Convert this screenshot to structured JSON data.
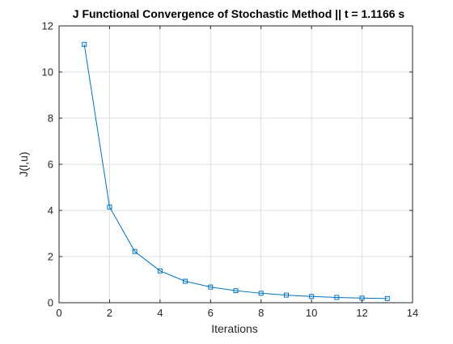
{
  "chart_data": {
    "type": "line",
    "title": "J Functional Convergence of Stochastic Method  ||  t = 1.1166 s",
    "xlabel": "Iterations",
    "ylabel": "J(l,u)",
    "xlim": [
      0,
      14
    ],
    "ylim": [
      0,
      12
    ],
    "xticks": [
      0,
      2,
      4,
      6,
      8,
      10,
      12,
      14
    ],
    "yticks": [
      0,
      2,
      4,
      6,
      8,
      10,
      12
    ],
    "grid": true,
    "marker": "square",
    "color": "#0072BD",
    "series": [
      {
        "x": [
          1,
          2,
          3,
          4,
          5,
          6,
          7,
          8,
          9,
          10,
          11,
          12,
          13
        ],
        "values": [
          11.2,
          4.15,
          2.22,
          1.38,
          0.93,
          0.68,
          0.52,
          0.41,
          0.33,
          0.27,
          0.23,
          0.2,
          0.18
        ]
      }
    ]
  }
}
